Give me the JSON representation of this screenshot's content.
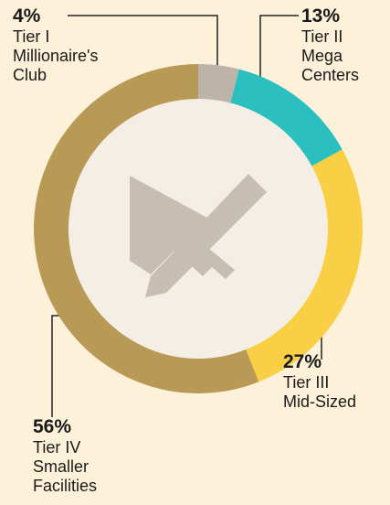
{
  "chart_data": {
    "type": "pie",
    "categories": [
      "Tier I\nMillionaire's\nClub",
      "Tier II\nMega\nCenters",
      "Tier III\nMid-Sized",
      "Tier IV\nSmaller\nFacilities"
    ],
    "values": [
      4,
      13,
      27,
      56
    ],
    "value_labels": [
      "4%",
      "13%",
      "27%",
      "56%"
    ],
    "colors": [
      "#bcb4a9",
      "#2bbfc0",
      "#f9cf46",
      "#b89a56"
    ]
  }
}
